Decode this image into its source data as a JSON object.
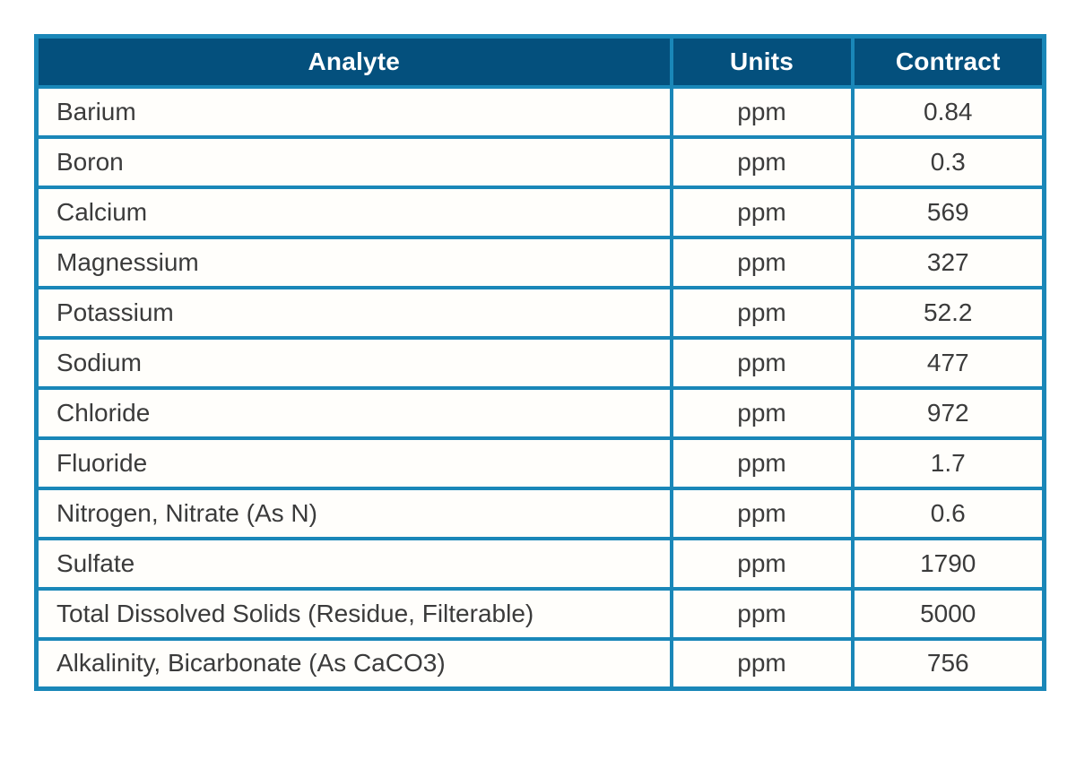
{
  "table": {
    "columns": [
      {
        "key": "analyte",
        "label": "Analyte"
      },
      {
        "key": "units",
        "label": "Units"
      },
      {
        "key": "contract",
        "label": "Contract"
      }
    ],
    "rows": [
      {
        "analyte": "Barium",
        "units": "ppm",
        "contract": "0.84"
      },
      {
        "analyte": "Boron",
        "units": "ppm",
        "contract": "0.3"
      },
      {
        "analyte": "Calcium",
        "units": "ppm",
        "contract": "569"
      },
      {
        "analyte": "Magnessium",
        "units": "ppm",
        "contract": "327"
      },
      {
        "analyte": "Potassium",
        "units": "ppm",
        "contract": "52.2"
      },
      {
        "analyte": "Sodium",
        "units": "ppm",
        "contract": "477"
      },
      {
        "analyte": "Chloride",
        "units": "ppm",
        "contract": "972"
      },
      {
        "analyte": "Fluoride",
        "units": "ppm",
        "contract": "1.7"
      },
      {
        "analyte": "Nitrogen, Nitrate (As N)",
        "units": "ppm",
        "contract": "0.6"
      },
      {
        "analyte": "Sulfate",
        "units": "ppm",
        "contract": "1790"
      },
      {
        "analyte": "Total Dissolved Solids (Residue, Filterable)",
        "units": "ppm",
        "contract": "5000"
      },
      {
        "analyte": "Alkalinity, Bicarbonate (As CaCO3)",
        "units": "ppm",
        "contract": "756"
      }
    ]
  },
  "colors": {
    "border": "#1a87b8",
    "header_bg": "#04507d",
    "header_text": "#ffffff",
    "body_text": "#3b3b3b",
    "contract_cell_bg": "#aacfed",
    "row_bg": "#fffefb"
  },
  "chart_data": {
    "type": "table",
    "columns": [
      "Analyte",
      "Units",
      "Contract"
    ],
    "rows": [
      [
        "Barium",
        "ppm",
        0.84
      ],
      [
        "Boron",
        "ppm",
        0.3
      ],
      [
        "Calcium",
        "ppm",
        569
      ],
      [
        "Magnessium",
        "ppm",
        327
      ],
      [
        "Potassium",
        "ppm",
        52.2
      ],
      [
        "Sodium",
        "ppm",
        477
      ],
      [
        "Chloride",
        "ppm",
        972
      ],
      [
        "Fluoride",
        "ppm",
        1.7
      ],
      [
        "Nitrogen, Nitrate (As N)",
        "ppm",
        0.6
      ],
      [
        "Sulfate",
        "ppm",
        1790
      ],
      [
        "Total Dissolved Solids (Residue, Filterable)",
        "ppm",
        5000
      ],
      [
        "Alkalinity, Bicarbonate (As CaCO3)",
        "ppm",
        756
      ]
    ]
  }
}
